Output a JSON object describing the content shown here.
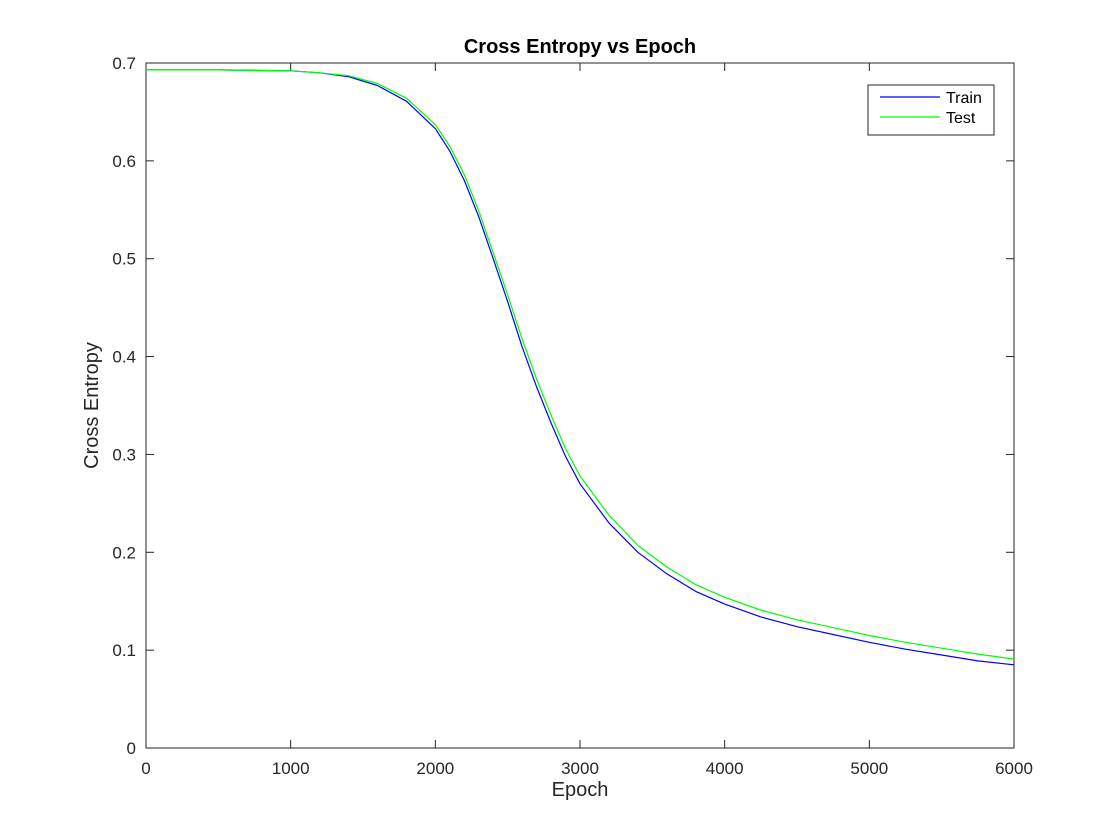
{
  "chart_data": {
    "type": "line",
    "title": "Cross Entropy vs Epoch",
    "xlabel": "Epoch",
    "ylabel": "Cross Entropy",
    "xlim": [
      0,
      6000
    ],
    "ylim": [
      0,
      0.7
    ],
    "xticks": [
      0,
      1000,
      2000,
      3000,
      4000,
      5000,
      6000
    ],
    "yticks": [
      0,
      0.1,
      0.2,
      0.3,
      0.4,
      0.5,
      0.6,
      0.7
    ],
    "grid": false,
    "legend_position": "top-right",
    "x": [
      0,
      500,
      1000,
      1200,
      1400,
      1600,
      1800,
      2000,
      2100,
      2200,
      2300,
      2400,
      2500,
      2600,
      2700,
      2800,
      2900,
      3000,
      3200,
      3400,
      3600,
      3800,
      4000,
      4250,
      4500,
      4750,
      5000,
      5250,
      5500,
      5750,
      6000
    ],
    "series": [
      {
        "name": "Train",
        "color": "#0000ff",
        "values": [
          0.693,
          0.693,
          0.692,
          0.69,
          0.686,
          0.677,
          0.661,
          0.633,
          0.61,
          0.58,
          0.543,
          0.5,
          0.456,
          0.41,
          0.369,
          0.332,
          0.298,
          0.27,
          0.23,
          0.2,
          0.178,
          0.16,
          0.147,
          0.134,
          0.124,
          0.116,
          0.108,
          0.101,
          0.095,
          0.089,
          0.085
        ]
      },
      {
        "name": "Test",
        "color": "#00ff00",
        "values": [
          0.693,
          0.693,
          0.692,
          0.69,
          0.687,
          0.679,
          0.664,
          0.637,
          0.615,
          0.586,
          0.549,
          0.506,
          0.463,
          0.418,
          0.377,
          0.34,
          0.306,
          0.278,
          0.238,
          0.207,
          0.185,
          0.167,
          0.154,
          0.141,
          0.131,
          0.123,
          0.115,
          0.108,
          0.102,
          0.096,
          0.091
        ]
      }
    ]
  }
}
